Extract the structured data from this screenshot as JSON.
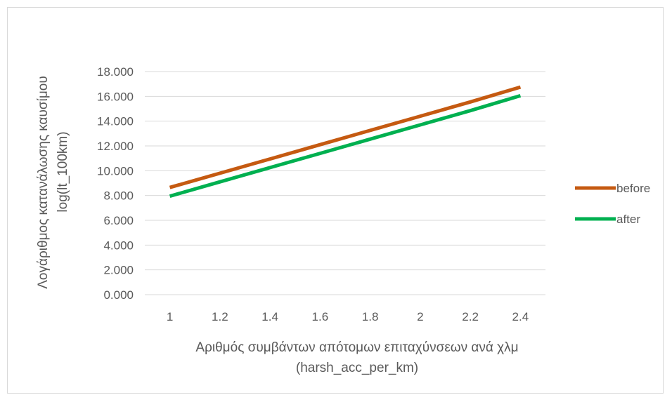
{
  "chart_data": {
    "type": "line",
    "x": [
      1,
      1.2,
      1.4,
      1.6,
      1.8,
      2,
      2.2,
      2.4
    ],
    "x_tick_labels": [
      "1",
      "1.2",
      "1.4",
      "1.6",
      "1.8",
      "2",
      "2.2",
      "2.4"
    ],
    "series": [
      {
        "name": "before",
        "color": "#C55A11",
        "values": [
          8.65,
          9.8,
          10.95,
          12.1,
          13.25,
          14.4,
          15.55,
          16.75
        ]
      },
      {
        "name": "after",
        "color": "#00B050",
        "values": [
          7.95,
          9.1,
          10.25,
          11.4,
          12.55,
          13.7,
          14.85,
          16.05
        ]
      }
    ],
    "ylim": [
      0,
      18
    ],
    "y_ticks": [
      0,
      2,
      4,
      6,
      8,
      10,
      12,
      14,
      16,
      18
    ],
    "y_tick_labels": [
      "0.000",
      "2.000",
      "4.000",
      "6.000",
      "8.000",
      "10.000",
      "12.000",
      "14.000",
      "16.000",
      "18.000"
    ],
    "xlabel_line1": "Αριθμός συμβάντων απότομων επιταχύνσεων ανά χλμ",
    "xlabel_line2": "(harsh_acc_per_km)",
    "ylabel_line1": "Λογάριθμος κατανάλωσης καυσίμου",
    "ylabel_line2": "log(lt_100km)",
    "grid": "horizontal",
    "legend_position": "right",
    "gridline_color": "#d9d9d9"
  }
}
